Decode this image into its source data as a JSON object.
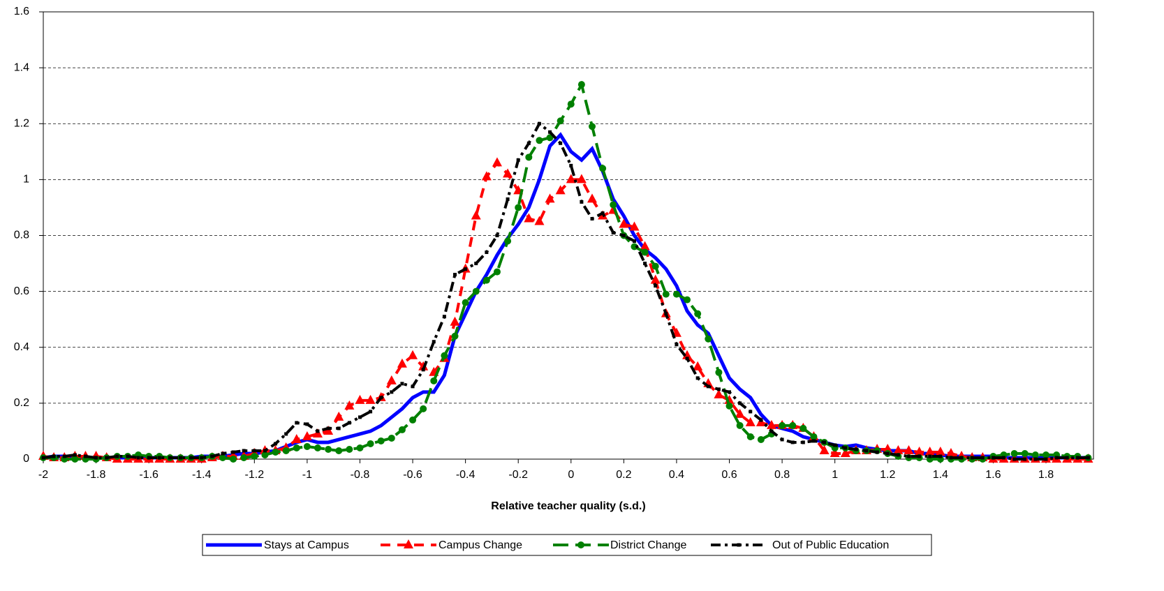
{
  "chart_data": {
    "type": "line",
    "x_label": "Relative teacher quality (s.d.)",
    "x": [
      -2,
      -1.96,
      -1.92,
      -1.88,
      -1.84,
      -1.8,
      -1.76,
      -1.72,
      -1.68,
      -1.64,
      -1.6,
      -1.56,
      -1.52,
      -1.48,
      -1.44,
      -1.4,
      -1.36,
      -1.32,
      -1.28,
      -1.24,
      -1.2,
      -1.16,
      -1.12,
      -1.08,
      -1.04,
      -1,
      -0.96,
      -0.92,
      -0.88,
      -0.84,
      -0.8,
      -0.76,
      -0.72,
      -0.68,
      -0.64,
      -0.6,
      -0.56,
      -0.52,
      -0.48,
      -0.44,
      -0.4,
      -0.36,
      -0.32,
      -0.28,
      -0.24,
      -0.2,
      -0.16,
      -0.12,
      -0.08,
      -0.04,
      0,
      0.04,
      0.08,
      0.12,
      0.16,
      0.2,
      0.24,
      0.28,
      0.32,
      0.36,
      0.4,
      0.44,
      0.48,
      0.52,
      0.56,
      0.6,
      0.64,
      0.68,
      0.72,
      0.76,
      0.8,
      0.84,
      0.88,
      0.92,
      0.96,
      1,
      1.04,
      1.08,
      1.12,
      1.16,
      1.2,
      1.24,
      1.28,
      1.32,
      1.36,
      1.4,
      1.44,
      1.48,
      1.52,
      1.56,
      1.6,
      1.64,
      1.68,
      1.72,
      1.76,
      1.8,
      1.84,
      1.88,
      1.92,
      1.96
    ],
    "series": [
      {
        "name": "Stays at Campus",
        "color": "#0000ff",
        "dash": "solid",
        "marker": "none",
        "values": [
          0.005,
          0.01,
          0.01,
          0.01,
          0.005,
          0.005,
          0.005,
          0.005,
          0.005,
          0.005,
          0.005,
          0.005,
          0.005,
          0.005,
          0.005,
          0.01,
          0.01,
          0.01,
          0.015,
          0.02,
          0.02,
          0.025,
          0.03,
          0.045,
          0.06,
          0.07,
          0.06,
          0.06,
          0.07,
          0.08,
          0.09,
          0.1,
          0.12,
          0.15,
          0.18,
          0.22,
          0.24,
          0.24,
          0.3,
          0.44,
          0.52,
          0.6,
          0.66,
          0.73,
          0.79,
          0.84,
          0.9,
          1.0,
          1.12,
          1.16,
          1.1,
          1.07,
          1.11,
          1.03,
          0.93,
          0.87,
          0.8,
          0.75,
          0.72,
          0.68,
          0.62,
          0.53,
          0.48,
          0.45,
          0.37,
          0.29,
          0.25,
          0.22,
          0.16,
          0.12,
          0.11,
          0.1,
          0.08,
          0.07,
          0.06,
          0.05,
          0.045,
          0.05,
          0.04,
          0.035,
          0.03,
          0.03,
          0.03,
          0.02,
          0.02,
          0.015,
          0.01,
          0.01,
          0.01,
          0.01,
          0.01,
          0.005,
          0.005,
          0.005,
          0.005,
          0.005,
          0.005,
          0.005,
          0.005,
          0.005
        ]
      },
      {
        "name": "Campus Change",
        "color": "#ff0000",
        "dash": "dash",
        "marker": "triangle",
        "values": [
          0.01,
          0.005,
          0.005,
          0.01,
          0.01,
          0.01,
          0.005,
          0,
          0,
          0,
          0,
          0,
          0,
          0,
          0,
          0,
          0.005,
          0.01,
          0.01,
          0.01,
          0.02,
          0.03,
          0.03,
          0.04,
          0.07,
          0.08,
          0.09,
          0.1,
          0.15,
          0.19,
          0.21,
          0.21,
          0.22,
          0.28,
          0.34,
          0.37,
          0.33,
          0.31,
          0.36,
          0.49,
          0.68,
          0.87,
          1.01,
          1.06,
          1.02,
          0.96,
          0.86,
          0.85,
          0.93,
          0.96,
          1.0,
          1.0,
          0.93,
          0.87,
          0.89,
          0.84,
          0.83,
          0.76,
          0.64,
          0.52,
          0.45,
          0.37,
          0.33,
          0.27,
          0.23,
          0.21,
          0.16,
          0.13,
          0.13,
          0.12,
          0.12,
          0.12,
          0.11,
          0.08,
          0.03,
          0.02,
          0.02,
          0.03,
          0.03,
          0.035,
          0.035,
          0.03,
          0.03,
          0.025,
          0.025,
          0.025,
          0.02,
          0.01,
          0.005,
          0.005,
          0,
          0,
          0,
          0,
          0,
          0,
          0,
          0,
          0,
          0
        ]
      },
      {
        "name": "District Change",
        "color": "#008000",
        "dash": "longdash",
        "marker": "circle",
        "values": [
          0.005,
          0.005,
          0,
          0,
          0,
          0,
          0.005,
          0.01,
          0.01,
          0.015,
          0.01,
          0.01,
          0.005,
          0.005,
          0.005,
          0.005,
          0.01,
          0.005,
          0,
          0.005,
          0.01,
          0.015,
          0.025,
          0.03,
          0.04,
          0.045,
          0.04,
          0.035,
          0.03,
          0.035,
          0.04,
          0.055,
          0.065,
          0.075,
          0.105,
          0.14,
          0.18,
          0.28,
          0.37,
          0.44,
          0.56,
          0.6,
          0.64,
          0.67,
          0.78,
          0.9,
          1.08,
          1.14,
          1.15,
          1.21,
          1.27,
          1.34,
          1.19,
          1.04,
          0.91,
          0.8,
          0.76,
          0.74,
          0.69,
          0.59,
          0.59,
          0.57,
          0.52,
          0.43,
          0.31,
          0.19,
          0.12,
          0.08,
          0.07,
          0.09,
          0.12,
          0.12,
          0.11,
          0.08,
          0.06,
          0.04,
          0.04,
          0.03,
          0.03,
          0.03,
          0.02,
          0.01,
          0.005,
          0.005,
          0,
          0,
          0,
          0,
          0,
          0,
          0.01,
          0.015,
          0.02,
          0.02,
          0.015,
          0.015,
          0.015,
          0.01,
          0.01,
          0.005
        ]
      },
      {
        "name": "Out of Public Education",
        "color": "#000000",
        "dash": "dashdot",
        "marker": "square",
        "values": [
          0.005,
          0.01,
          0.01,
          0.015,
          0.01,
          0.005,
          0.005,
          0.01,
          0.01,
          0.005,
          0.005,
          0.005,
          0.005,
          0.005,
          0.005,
          0.005,
          0.01,
          0.02,
          0.025,
          0.03,
          0.03,
          0.03,
          0.055,
          0.09,
          0.13,
          0.125,
          0.1,
          0.11,
          0.11,
          0.13,
          0.15,
          0.17,
          0.22,
          0.24,
          0.27,
          0.26,
          0.32,
          0.42,
          0.51,
          0.66,
          0.68,
          0.7,
          0.74,
          0.8,
          0.93,
          1.07,
          1.13,
          1.2,
          1.17,
          1.13,
          1.05,
          0.92,
          0.86,
          0.88,
          0.81,
          0.8,
          0.78,
          0.7,
          0.62,
          0.52,
          0.41,
          0.36,
          0.29,
          0.26,
          0.25,
          0.24,
          0.2,
          0.17,
          0.14,
          0.1,
          0.07,
          0.06,
          0.06,
          0.065,
          0.06,
          0.05,
          0.04,
          0.035,
          0.03,
          0.025,
          0.02,
          0.015,
          0.01,
          0.01,
          0.01,
          0.01,
          0.005,
          0.005,
          0.005,
          0.005,
          0.005,
          0.005,
          0,
          0,
          0,
          0,
          0.005,
          0.005,
          0.005,
          0.005
        ]
      }
    ],
    "xlim": [
      -2,
      1.98
    ],
    "xticks": [
      -2,
      -1.8,
      -1.6,
      -1.4,
      -1.2,
      -1,
      -0.8,
      -0.6,
      -0.4,
      -0.2,
      0,
      0.2,
      0.4,
      0.6,
      0.8,
      1,
      1.2,
      1.4,
      1.6,
      1.8
    ],
    "ylim": [
      0,
      1.6
    ],
    "yticks": [
      0,
      0.2,
      0.4,
      0.6,
      0.8,
      1,
      1.2,
      1.4,
      1.6
    ],
    "grid": true,
    "legend": "bottom"
  }
}
